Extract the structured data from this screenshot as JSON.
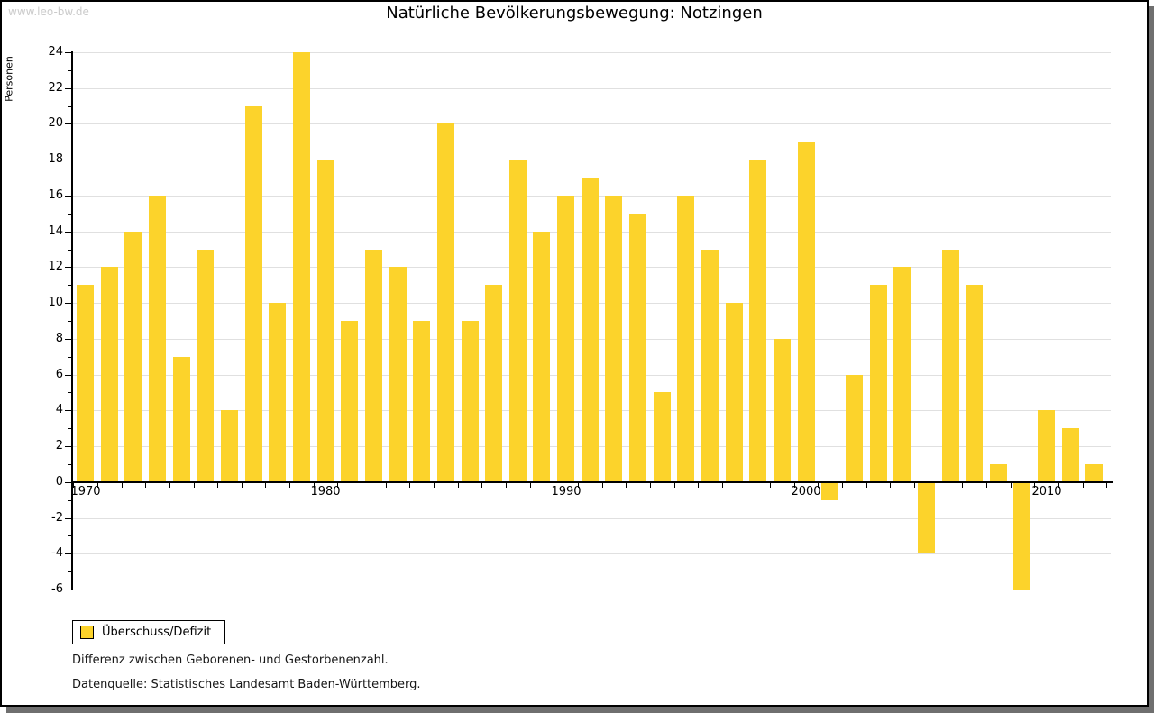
{
  "watermark": "www.leo-bw.de",
  "title": "Natürliche Bevölkerungsbewegung: Notzingen",
  "chart_data": {
    "type": "bar",
    "title": "Natürliche Bevölkerungsbewegung: Notzingen",
    "xlabel": "",
    "ylabel": "Personen",
    "series_name": "Überschuss/Defizit",
    "categories": [
      1970,
      1971,
      1972,
      1973,
      1974,
      1975,
      1976,
      1977,
      1978,
      1979,
      1980,
      1981,
      1982,
      1983,
      1984,
      1985,
      1986,
      1987,
      1988,
      1989,
      1990,
      1991,
      1992,
      1993,
      1994,
      1995,
      1996,
      1997,
      1998,
      1999,
      2000,
      2001,
      2002,
      2003,
      2004,
      2005,
      2006,
      2007,
      2008,
      2009,
      2010,
      2011,
      2012
    ],
    "values": [
      11,
      12,
      14,
      16,
      7,
      13,
      4,
      21,
      10,
      24,
      18,
      9,
      13,
      12,
      9,
      20,
      9,
      11,
      18,
      14,
      16,
      17,
      16,
      15,
      5,
      16,
      13,
      10,
      18,
      8,
      19,
      -1,
      6,
      11,
      12,
      -4,
      13,
      11,
      1,
      -6,
      4,
      3,
      1
    ],
    "ylim": [
      -6,
      24
    ],
    "ytick_step": 2,
    "xticks": [
      1970,
      1980,
      1990,
      2000,
      2010
    ],
    "grid": true,
    "legend_position": "bottom-left",
    "bar_color": "#FCD32B",
    "grid_color": "#E0E0E0"
  },
  "legend": {
    "label": "Überschuss/Defizit"
  },
  "footer": {
    "line1": "Differenz zwischen Geborenen- und Gestorbenenzahl.",
    "line2": "Datenquelle: Statistisches Landesamt Baden-Württemberg."
  }
}
